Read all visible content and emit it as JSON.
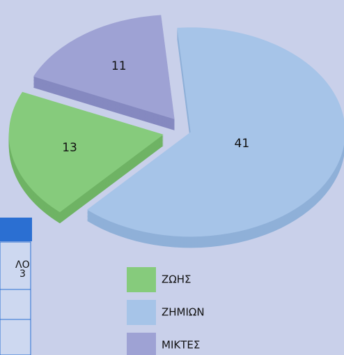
{
  "chart_data": {
    "type": "pie",
    "categories": [
      "ΖΗΜΙΩΝ",
      "ΖΩΗΣ",
      "ΜΙΚΤΕΣ"
    ],
    "values": [
      41,
      13,
      11
    ],
    "colors": [
      "#a6c4e8",
      "#86cb7c",
      "#9ea2d4"
    ],
    "side_colors": [
      "#8fb0d8",
      "#6fb364",
      "#8589c0"
    ],
    "legend_order": [
      1,
      0,
      2
    ]
  },
  "table": {
    "cells": [
      "ΛΟ",
      "3"
    ]
  }
}
